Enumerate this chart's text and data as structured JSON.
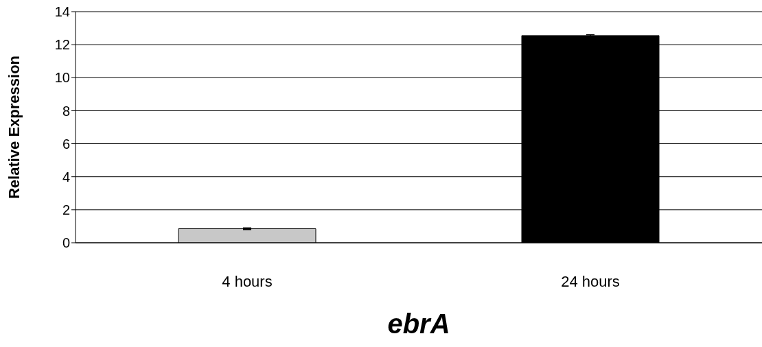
{
  "chart_data": {
    "type": "bar",
    "categories": [
      "4 hours",
      "24 hours"
    ],
    "values": [
      0.85,
      12.55
    ],
    "errors": [
      0.05,
      0.05
    ],
    "colors": [
      "#c8c8c8",
      "#000000"
    ],
    "xlabel": "ebrA",
    "ylabel": "Relative Expression",
    "ylim": [
      0,
      14
    ],
    "yticks": [
      0,
      2,
      4,
      6,
      8,
      10,
      12,
      14
    ],
    "grid": "y"
  }
}
